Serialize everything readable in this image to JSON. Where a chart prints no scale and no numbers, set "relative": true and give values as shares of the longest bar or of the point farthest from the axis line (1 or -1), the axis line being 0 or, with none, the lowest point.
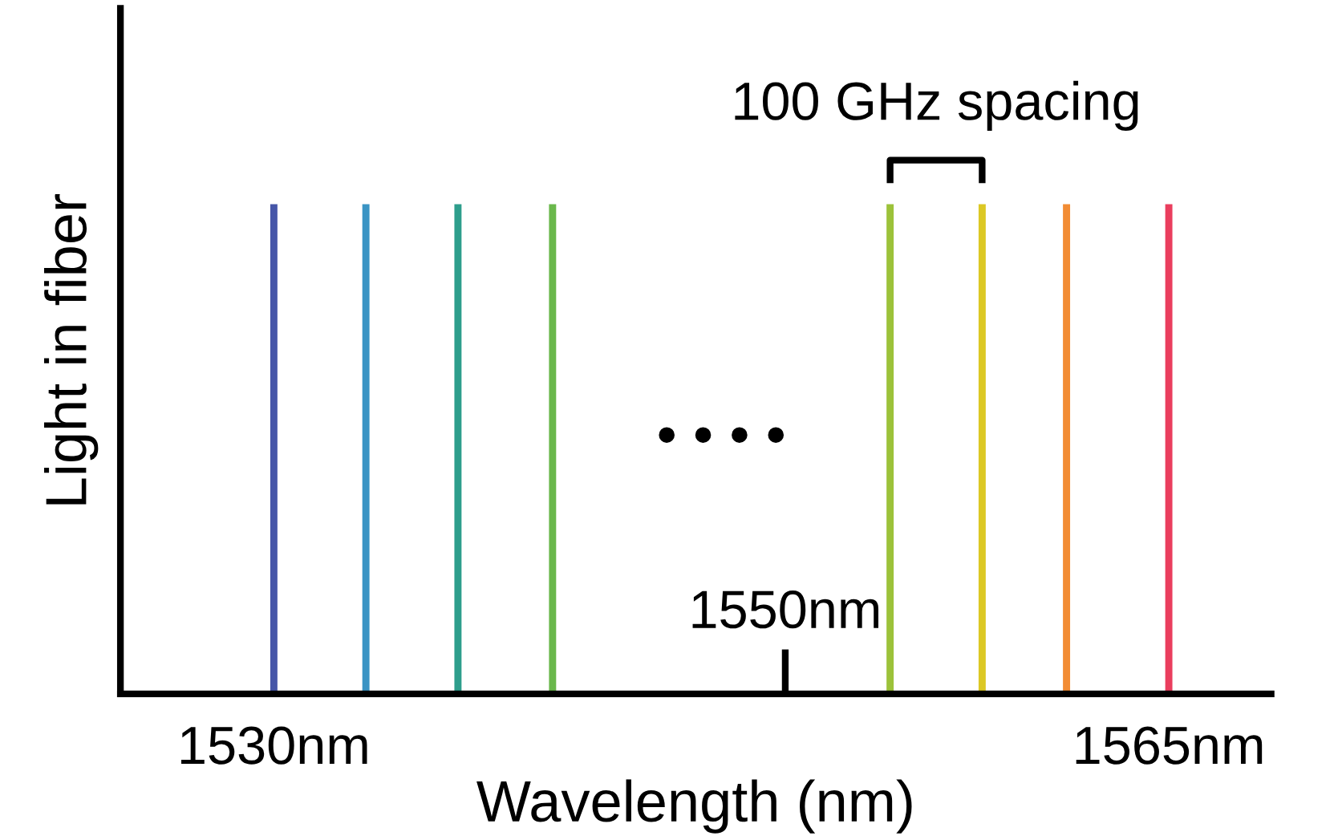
{
  "chart_data": {
    "type": "bar",
    "relative": true,
    "xlabel": "Wavelength (nm)",
    "ylabel": "Light in fiber",
    "x": [
      1530,
      1533.6,
      1537.2,
      1540.9,
      1554.1,
      1557.7,
      1561.0,
      1565
    ],
    "values": [
      1,
      1,
      1,
      1,
      1,
      1,
      1,
      1
    ],
    "colors": [
      "#4656a8",
      "#3a94c4",
      "#2e9e8c",
      "#6ab84c",
      "#9cc23a",
      "#dcc824",
      "#f28c34",
      "#ea3e5e"
    ],
    "xlim": [
      1524,
      1569
    ],
    "xticks": [
      {
        "value": 1530,
        "label": "1530nm"
      },
      {
        "value": 1565,
        "label": "1565nm"
      }
    ],
    "ref_lines": [
      {
        "axis": "x",
        "value": 1550,
        "label": "1550nm"
      }
    ],
    "annotations": [
      "• • • •",
      "100 GHz spacing"
    ],
    "grid": false
  }
}
